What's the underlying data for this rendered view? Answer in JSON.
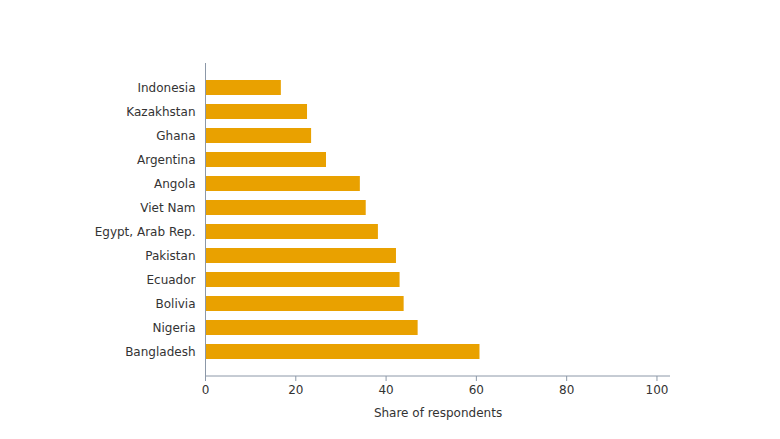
{
  "chart_data": {
    "type": "bar",
    "orientation": "horizontal",
    "categories": [
      "Indonesia",
      "Kazakhstan",
      "Ghana",
      "Argentina",
      "Angola",
      "Viet Nam",
      "Egypt, Arab Rep.",
      "Pakistan",
      "Ecuador",
      "Bolivia",
      "Nigeria",
      "Bangladesh"
    ],
    "values": [
      16.8,
      22.6,
      23.5,
      26.8,
      34.3,
      35.6,
      38.3,
      42.3,
      43.1,
      44,
      47.1,
      60.8
    ],
    "color": "#e9a100",
    "xlabel": "Share of respondents",
    "xlim": [
      0,
      103
    ],
    "xticks": [
      0,
      20,
      40,
      60,
      80,
      100
    ],
    "grid": false
  }
}
